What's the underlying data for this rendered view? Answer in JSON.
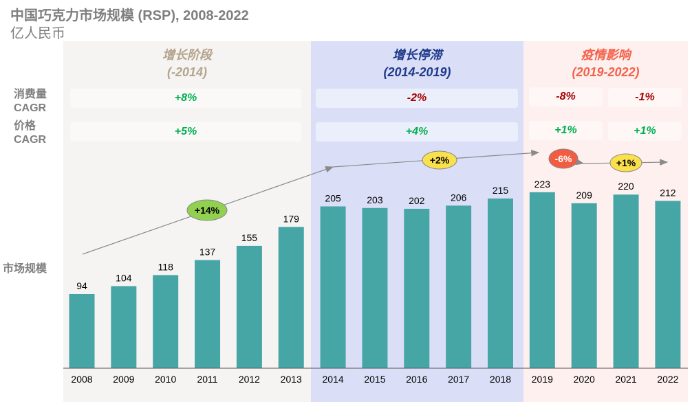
{
  "title": "中国巧克力市场规模 (RSP), 2008-2022",
  "subtitle": "亿人民币",
  "row_labels": {
    "volume": "消费量",
    "volume_cagr": "CAGR",
    "price": "价格",
    "price_cagr": "CAGR",
    "market": "市场规模"
  },
  "phases": [
    {
      "name": "增长阶段",
      "range": "(-2014)",
      "color": "#b5a48e",
      "bg": "#f5f4f2",
      "volume_cagr": [
        "+8%"
      ],
      "price_cagr": [
        "+5%"
      ]
    },
    {
      "name": "增长停滞",
      "range": "(2014-2019)",
      "color": "#1f3a8a",
      "bg": "#dadff7",
      "volume_cagr": [
        "-2%"
      ],
      "price_cagr": [
        "+4%"
      ]
    },
    {
      "name": "疫情影响",
      "range": "(2019-2022)",
      "color": "#f4624a",
      "bg": "#fdf0ef",
      "volume_cagr": [
        "-8%",
        "-1%"
      ],
      "price_cagr": [
        "+1%",
        "+1%"
      ]
    }
  ],
  "colors": {
    "bar": "#46a6a6",
    "positive": "#00b050",
    "negative": "#a50000"
  },
  "growth_labels": [
    {
      "text": "+14%",
      "color": "#92d050"
    },
    {
      "text": "+2%",
      "color": "#f9e04c"
    },
    {
      "text": "-6%",
      "color": "#f25c43"
    },
    {
      "text": "+1%",
      "color": "#f9e04c"
    }
  ],
  "chart_data": {
    "type": "bar",
    "categories": [
      "2008",
      "2009",
      "2010",
      "2011",
      "2012",
      "2013",
      "2014",
      "2015",
      "2016",
      "2017",
      "2018",
      "2019",
      "2020",
      "2021",
      "2022"
    ],
    "values": [
      94,
      104,
      118,
      137,
      155,
      179,
      205,
      203,
      202,
      206,
      215,
      223,
      209,
      220,
      212
    ],
    "title": "中国巧克力市场规模 (RSP), 2008-2022",
    "ylabel": "亿人民币"
  }
}
